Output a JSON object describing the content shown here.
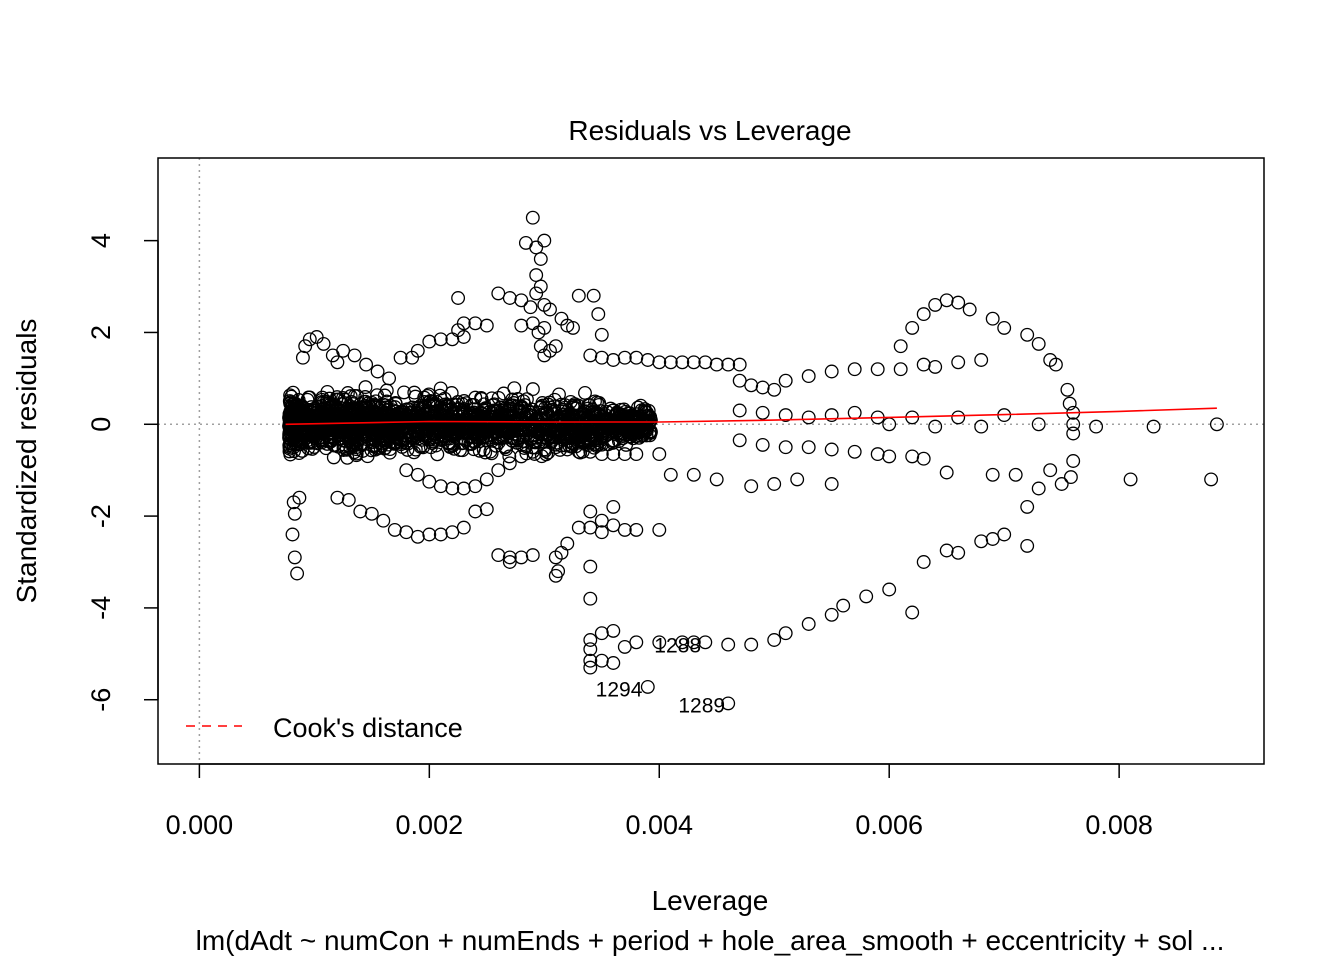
{
  "chart_data": {
    "type": "scatter",
    "title": "Residuals vs Leverage",
    "xlabel": "Leverage",
    "ylabel": "Standardized residuals",
    "subtitle": "lm(dAdt ~ numCon + numEnds + period + hole_area_smooth + eccentricity + sol ...",
    "xlim": [
      -0.00036,
      0.00926
    ],
    "ylim": [
      -7.4,
      5.8
    ],
    "xticks": [
      0.0,
      0.002,
      0.004,
      0.006,
      0.008
    ],
    "xtick_labels": [
      "0.000",
      "0.002",
      "0.004",
      "0.006",
      "0.008"
    ],
    "yticks": [
      -6,
      -4,
      -2,
      0,
      2,
      4
    ],
    "ytick_labels": [
      "-6",
      "-4",
      "-2",
      "0",
      "2",
      "4"
    ],
    "grid": false,
    "reference_lines": {
      "h": 0,
      "v": 0,
      "style": "dotted",
      "color": "#a0a0a0"
    },
    "legend": {
      "position": "bottom-left",
      "entries": [
        {
          "label": "Cook's distance",
          "color": "#ff0000",
          "style": "dashed"
        }
      ]
    },
    "smoother": {
      "color": "#ff0000",
      "x": [
        0.00075,
        0.002,
        0.003,
        0.004,
        0.005,
        0.006,
        0.007,
        0.008,
        0.00885
      ],
      "y": [
        0.0,
        0.06,
        0.05,
        0.05,
        0.09,
        0.15,
        0.21,
        0.28,
        0.35
      ]
    },
    "annotations": [
      {
        "label": "1288",
        "x": 0.00445,
        "y": -4.8
      },
      {
        "label": "1294",
        "x": 0.00394,
        "y": -5.75
      },
      {
        "label": "1289",
        "x": 0.00466,
        "y": -6.1
      }
    ],
    "point_color": "#000000",
    "series": [
      {
        "values": [
          [
            0.00085,
            -3.25
          ],
          [
            0.00083,
            -2.9
          ],
          [
            0.00081,
            -2.4
          ],
          [
            0.00083,
            -1.95
          ],
          [
            0.00082,
            -1.7
          ],
          [
            0.00087,
            -1.6
          ],
          [
            0.00082,
            -0.5
          ],
          [
            0.0008,
            -0.35
          ],
          [
            0.00079,
            0.45
          ],
          [
            0.0008,
            0.6
          ],
          [
            0.0009,
            1.45
          ],
          [
            0.00092,
            1.7
          ],
          [
            0.00096,
            1.85
          ],
          [
            0.00102,
            1.9
          ],
          [
            0.00108,
            1.75
          ],
          [
            0.00116,
            1.5
          ],
          [
            0.0012,
            1.35
          ],
          [
            0.00125,
            1.6
          ],
          [
            0.00135,
            1.5
          ],
          [
            0.00145,
            1.3
          ],
          [
            0.00155,
            1.15
          ],
          [
            0.00165,
            1.0
          ]
        ]
      },
      {
        "values": [
          [
            0.00175,
            1.45
          ],
          [
            0.00185,
            1.45
          ],
          [
            0.0019,
            1.6
          ],
          [
            0.002,
            1.8
          ],
          [
            0.0021,
            1.85
          ],
          [
            0.0022,
            1.85
          ],
          [
            0.0023,
            1.9
          ],
          [
            0.00225,
            2.05
          ],
          [
            0.0023,
            2.2
          ],
          [
            0.00225,
            2.75
          ],
          [
            0.0024,
            2.2
          ],
          [
            0.0025,
            2.15
          ],
          [
            0.0026,
            2.85
          ],
          [
            0.0027,
            2.75
          ],
          [
            0.0028,
            2.7
          ],
          [
            0.0028,
            2.15
          ],
          [
            0.0029,
            2.2
          ],
          [
            0.003,
            2.1
          ],
          [
            0.00305,
            2.5
          ],
          [
            0.00315,
            2.3
          ],
          [
            0.0032,
            2.15
          ],
          [
            0.00325,
            2.1
          ],
          [
            0.0033,
            2.8
          ],
          [
            0.00343,
            2.8
          ],
          [
            0.00347,
            2.4
          ],
          [
            0.0035,
            1.95
          ],
          [
            0.0034,
            1.5
          ]
        ]
      },
      {
        "values": [
          [
            0.0029,
            4.5
          ],
          [
            0.003,
            4.0
          ],
          [
            0.00293,
            3.85
          ],
          [
            0.00297,
            3.6
          ],
          [
            0.00293,
            3.25
          ],
          [
            0.00297,
            3.0
          ],
          [
            0.00293,
            2.85
          ],
          [
            0.003,
            2.6
          ],
          [
            0.00284,
            3.95
          ],
          [
            0.00288,
            2.55
          ],
          [
            0.00295,
            2.0
          ],
          [
            0.00297,
            1.7
          ],
          [
            0.003,
            1.5
          ],
          [
            0.00305,
            1.6
          ],
          [
            0.0031,
            1.7
          ]
        ]
      },
      {
        "values": [
          [
            0.0035,
            1.45
          ],
          [
            0.0036,
            1.4
          ],
          [
            0.0037,
            1.45
          ],
          [
            0.0038,
            1.45
          ],
          [
            0.0039,
            1.4
          ],
          [
            0.004,
            1.35
          ],
          [
            0.0041,
            1.35
          ],
          [
            0.0042,
            1.35
          ],
          [
            0.0043,
            1.35
          ],
          [
            0.0044,
            1.35
          ],
          [
            0.0045,
            1.3
          ],
          [
            0.0046,
            1.3
          ],
          [
            0.0047,
            1.3
          ]
        ]
      },
      {
        "values": [
          [
            0.0047,
            0.95
          ],
          [
            0.0048,
            0.85
          ],
          [
            0.0049,
            0.8
          ],
          [
            0.005,
            0.75
          ],
          [
            0.0051,
            0.95
          ],
          [
            0.0053,
            1.05
          ],
          [
            0.0055,
            1.15
          ],
          [
            0.0057,
            1.2
          ],
          [
            0.0059,
            1.2
          ],
          [
            0.0061,
            1.2
          ],
          [
            0.0063,
            1.3
          ],
          [
            0.0064,
            1.25
          ],
          [
            0.0066,
            1.35
          ],
          [
            0.0068,
            1.4
          ]
        ]
      },
      {
        "values": [
          [
            0.0061,
            1.7
          ],
          [
            0.0062,
            2.1
          ],
          [
            0.0063,
            2.4
          ],
          [
            0.0064,
            2.6
          ],
          [
            0.0065,
            2.7
          ],
          [
            0.0066,
            2.65
          ],
          [
            0.0067,
            2.5
          ],
          [
            0.0069,
            2.3
          ],
          [
            0.007,
            2.1
          ],
          [
            0.0072,
            1.95
          ],
          [
            0.0073,
            1.75
          ],
          [
            0.0074,
            1.4
          ],
          [
            0.00745,
            1.3
          ],
          [
            0.00755,
            0.75
          ],
          [
            0.00757,
            0.45
          ],
          [
            0.0076,
            0.25
          ],
          [
            0.0076,
            -0.2
          ],
          [
            0.0076,
            -0.8
          ],
          [
            0.00758,
            -1.15
          ],
          [
            0.0075,
            -1.3
          ],
          [
            0.0074,
            -1.0
          ],
          [
            0.0073,
            -1.4
          ],
          [
            0.0072,
            -1.8
          ],
          [
            0.0071,
            -1.1
          ]
        ]
      },
      {
        "values": [
          [
            0.0047,
            0.3
          ],
          [
            0.0049,
            0.25
          ],
          [
            0.0051,
            0.2
          ],
          [
            0.0053,
            0.15
          ],
          [
            0.0055,
            0.2
          ],
          [
            0.0057,
            0.25
          ],
          [
            0.0059,
            0.15
          ],
          [
            0.006,
            0.0
          ],
          [
            0.0062,
            0.15
          ],
          [
            0.0064,
            -0.05
          ],
          [
            0.0066,
            0.15
          ],
          [
            0.0068,
            -0.05
          ],
          [
            0.007,
            0.2
          ],
          [
            0.0073,
            0.0
          ],
          [
            0.0076,
            0.0
          ],
          [
            0.0078,
            -0.05
          ],
          [
            0.0083,
            -0.05
          ],
          [
            0.00885,
            0.0
          ]
        ]
      },
      {
        "values": [
          [
            0.0047,
            -0.35
          ],
          [
            0.0049,
            -0.45
          ],
          [
            0.0051,
            -0.5
          ],
          [
            0.0053,
            -0.5
          ],
          [
            0.0055,
            -0.55
          ],
          [
            0.0057,
            -0.6
          ],
          [
            0.0059,
            -0.65
          ],
          [
            0.006,
            -0.7
          ],
          [
            0.0062,
            -0.7
          ],
          [
            0.0063,
            -0.75
          ],
          [
            0.0065,
            -1.05
          ],
          [
            0.0069,
            -1.1
          ],
          [
            0.0081,
            -1.2
          ],
          [
            0.0088,
            -1.2
          ],
          [
            0.0055,
            -1.3
          ],
          [
            0.0052,
            -1.2
          ],
          [
            0.005,
            -1.3
          ],
          [
            0.0048,
            -1.35
          ],
          [
            0.0045,
            -1.2
          ],
          [
            0.0043,
            -1.1
          ],
          [
            0.0041,
            -1.1
          ],
          [
            0.004,
            -0.65
          ]
        ]
      },
      {
        "values": [
          [
            0.0062,
            -4.1
          ],
          [
            0.006,
            -3.6
          ],
          [
            0.0058,
            -3.75
          ],
          [
            0.0056,
            -3.95
          ],
          [
            0.0055,
            -4.15
          ],
          [
            0.0053,
            -4.35
          ],
          [
            0.0051,
            -4.55
          ],
          [
            0.005,
            -4.7
          ],
          [
            0.0048,
            -4.8
          ],
          [
            0.0046,
            -4.8
          ],
          [
            0.0044,
            -4.75
          ],
          [
            0.0043,
            -4.75
          ],
          [
            0.0042,
            -4.75
          ],
          [
            0.004,
            -4.75
          ],
          [
            0.0038,
            -4.75
          ],
          [
            0.0037,
            -4.85
          ],
          [
            0.0036,
            -4.5
          ],
          [
            0.0035,
            -4.55
          ],
          [
            0.0034,
            -4.7
          ],
          [
            0.0034,
            -4.9
          ],
          [
            0.0034,
            -5.15
          ],
          [
            0.0034,
            -5.3
          ],
          [
            0.0035,
            -5.15
          ],
          [
            0.0036,
            -5.2
          ],
          [
            0.0034,
            -3.8
          ],
          [
            0.0034,
            -3.1
          ],
          [
            0.0039,
            -5.72
          ],
          [
            0.0046,
            -6.08
          ]
        ]
      },
      {
        "values": [
          [
            0.0063,
            -3.0
          ],
          [
            0.0065,
            -2.75
          ],
          [
            0.0066,
            -2.8
          ],
          [
            0.0068,
            -2.55
          ],
          [
            0.0069,
            -2.5
          ],
          [
            0.007,
            -2.4
          ],
          [
            0.0072,
            -2.65
          ]
        ]
      },
      {
        "values": [
          [
            0.0031,
            -2.9
          ],
          [
            0.00312,
            -3.2
          ],
          [
            0.0031,
            -3.3
          ],
          [
            0.00315,
            -2.8
          ],
          [
            0.0032,
            -2.6
          ],
          [
            0.0033,
            -2.25
          ],
          [
            0.0034,
            -2.25
          ],
          [
            0.0035,
            -2.35
          ],
          [
            0.0036,
            -2.2
          ],
          [
            0.0037,
            -2.3
          ],
          [
            0.0038,
            -2.3
          ],
          [
            0.004,
            -2.3
          ],
          [
            0.0035,
            -2.1
          ],
          [
            0.0036,
            -1.8
          ],
          [
            0.0034,
            -1.9
          ]
        ]
      },
      {
        "values": [
          [
            0.0026,
            -2.85
          ],
          [
            0.0027,
            -2.9
          ],
          [
            0.0027,
            -3.0
          ],
          [
            0.0028,
            -2.9
          ],
          [
            0.0029,
            -2.85
          ],
          [
            0.0025,
            -1.85
          ],
          [
            0.0024,
            -1.9
          ],
          [
            0.0023,
            -2.25
          ],
          [
            0.0022,
            -2.35
          ],
          [
            0.0021,
            -2.4
          ],
          [
            0.002,
            -2.4
          ],
          [
            0.0019,
            -2.45
          ],
          [
            0.0018,
            -2.35
          ],
          [
            0.0017,
            -2.3
          ],
          [
            0.0016,
            -2.1
          ],
          [
            0.0015,
            -1.95
          ],
          [
            0.0014,
            -1.9
          ],
          [
            0.0013,
            -1.65
          ],
          [
            0.0012,
            -1.6
          ]
        ]
      },
      {
        "values": [
          [
            0.0018,
            -1.0
          ],
          [
            0.0019,
            -1.1
          ],
          [
            0.002,
            -1.25
          ],
          [
            0.0021,
            -1.35
          ],
          [
            0.0022,
            -1.4
          ],
          [
            0.0023,
            -1.4
          ],
          [
            0.0024,
            -1.35
          ],
          [
            0.0025,
            -1.2
          ],
          [
            0.0026,
            -1.0
          ],
          [
            0.0027,
            -0.85
          ],
          [
            0.0028,
            -0.7
          ],
          [
            0.0029,
            -0.6
          ],
          [
            0.003,
            -0.55
          ],
          [
            0.0031,
            -0.5
          ],
          [
            0.0032,
            -0.55
          ],
          [
            0.0033,
            -0.6
          ],
          [
            0.0034,
            -0.6
          ],
          [
            0.0035,
            -0.65
          ],
          [
            0.0036,
            -0.65
          ],
          [
            0.0037,
            -0.65
          ],
          [
            0.0038,
            -0.65
          ]
        ]
      }
    ]
  }
}
